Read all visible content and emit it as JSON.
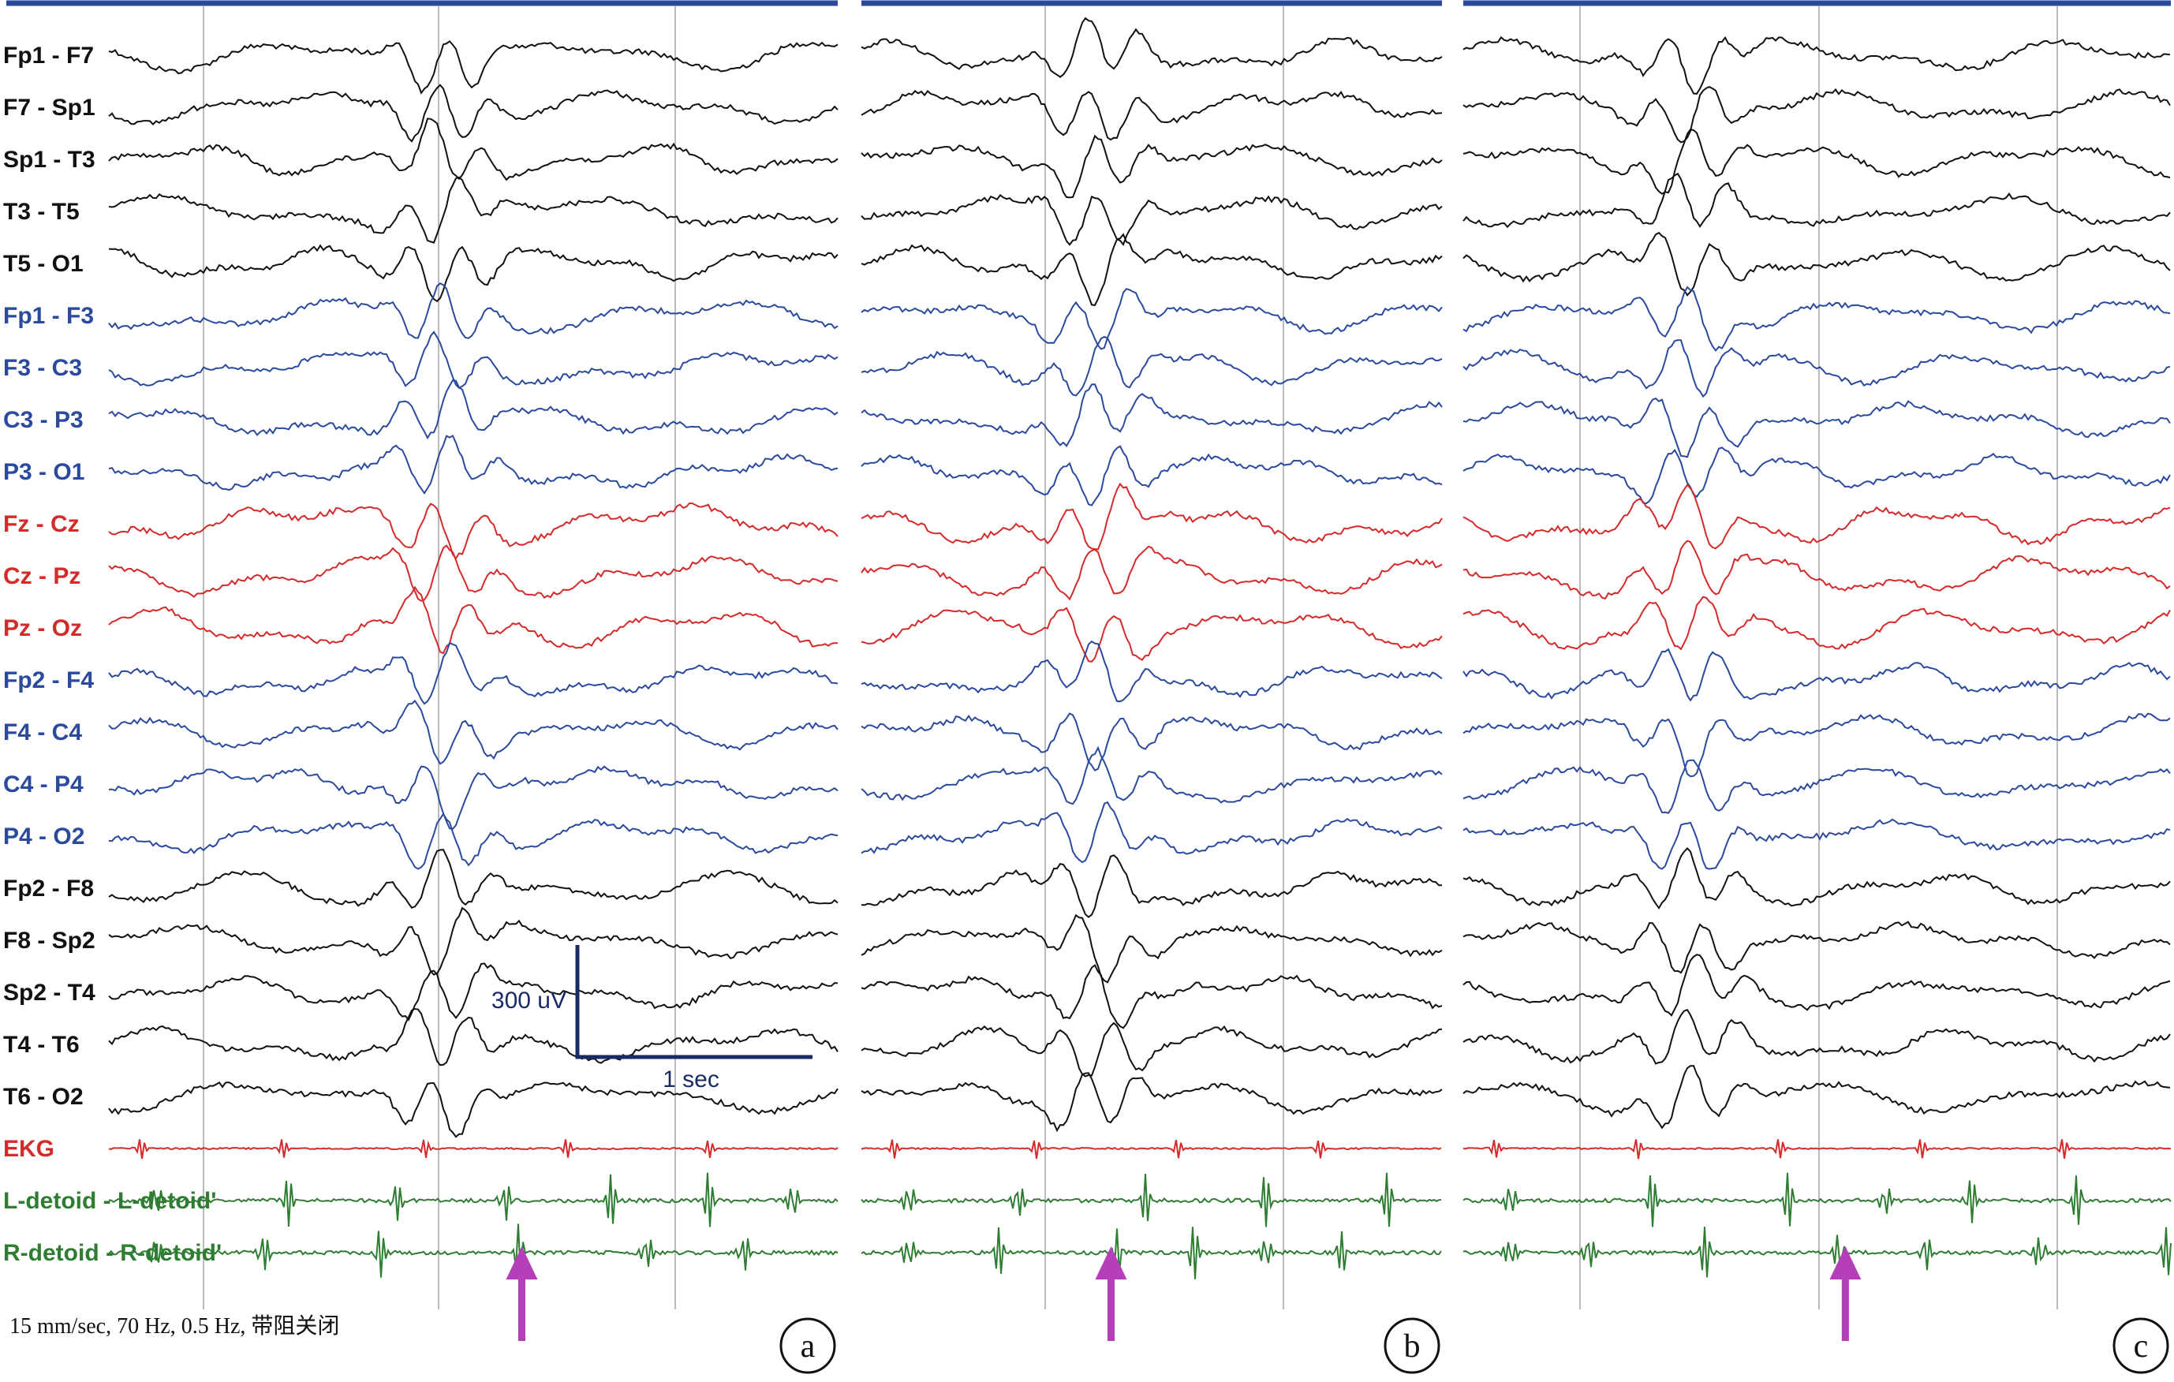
{
  "figure": {
    "caption": "15 mm/sec, 70 Hz, 0.5 Hz, 带阻关闭",
    "scale_bar": {
      "amplitude_label": "300 uV",
      "time_label": "1 sec"
    },
    "panels": [
      {
        "id": "a",
        "label": "a",
        "arrow_at": 0.62
      },
      {
        "id": "b",
        "label": "b",
        "arrow_at": 0.43
      },
      {
        "id": "c",
        "label": "c",
        "arrow_at": 0.54
      }
    ],
    "colors": {
      "black_group": "#111111",
      "blue_group": "#2b4a9e",
      "red_group": "#d42a2a",
      "emg_group": "#2e7d32",
      "arrow": "#b43fb9",
      "top_bar": "#2b4a9e",
      "grid": "#bbbbbb"
    },
    "channels": [
      {
        "label": "Fp1 - F7",
        "group": "black"
      },
      {
        "label": "F7 - Sp1",
        "group": "black"
      },
      {
        "label": "Sp1 - T3",
        "group": "black"
      },
      {
        "label": "T3 - T5",
        "group": "black"
      },
      {
        "label": "T5 - O1",
        "group": "black"
      },
      {
        "label": "Fp1 - F3",
        "group": "blue"
      },
      {
        "label": "F3 - C3",
        "group": "blue"
      },
      {
        "label": "C3 - P3",
        "group": "blue"
      },
      {
        "label": "P3 - O1",
        "group": "blue"
      },
      {
        "label": "Fz - Cz",
        "group": "red"
      },
      {
        "label": "Cz - Pz",
        "group": "red"
      },
      {
        "label": "Pz - Oz",
        "group": "red"
      },
      {
        "label": "Fp2 - F4",
        "group": "blue"
      },
      {
        "label": "F4 - C4",
        "group": "blue"
      },
      {
        "label": "C4 - P4",
        "group": "blue"
      },
      {
        "label": "P4 - O2",
        "group": "blue"
      },
      {
        "label": "Fp2 - F8",
        "group": "black"
      },
      {
        "label": "F8 - Sp2",
        "group": "black"
      },
      {
        "label": "Sp2 - T4",
        "group": "black"
      },
      {
        "label": "T4 - T6",
        "group": "black"
      },
      {
        "label": "T6 - O2",
        "group": "black"
      },
      {
        "label": "EKG",
        "group": "ekg"
      },
      {
        "label": "L-detoid - L-detoid'",
        "group": "emg"
      },
      {
        "label": "R-detoid - R-detoid'",
        "group": "emg"
      }
    ]
  }
}
